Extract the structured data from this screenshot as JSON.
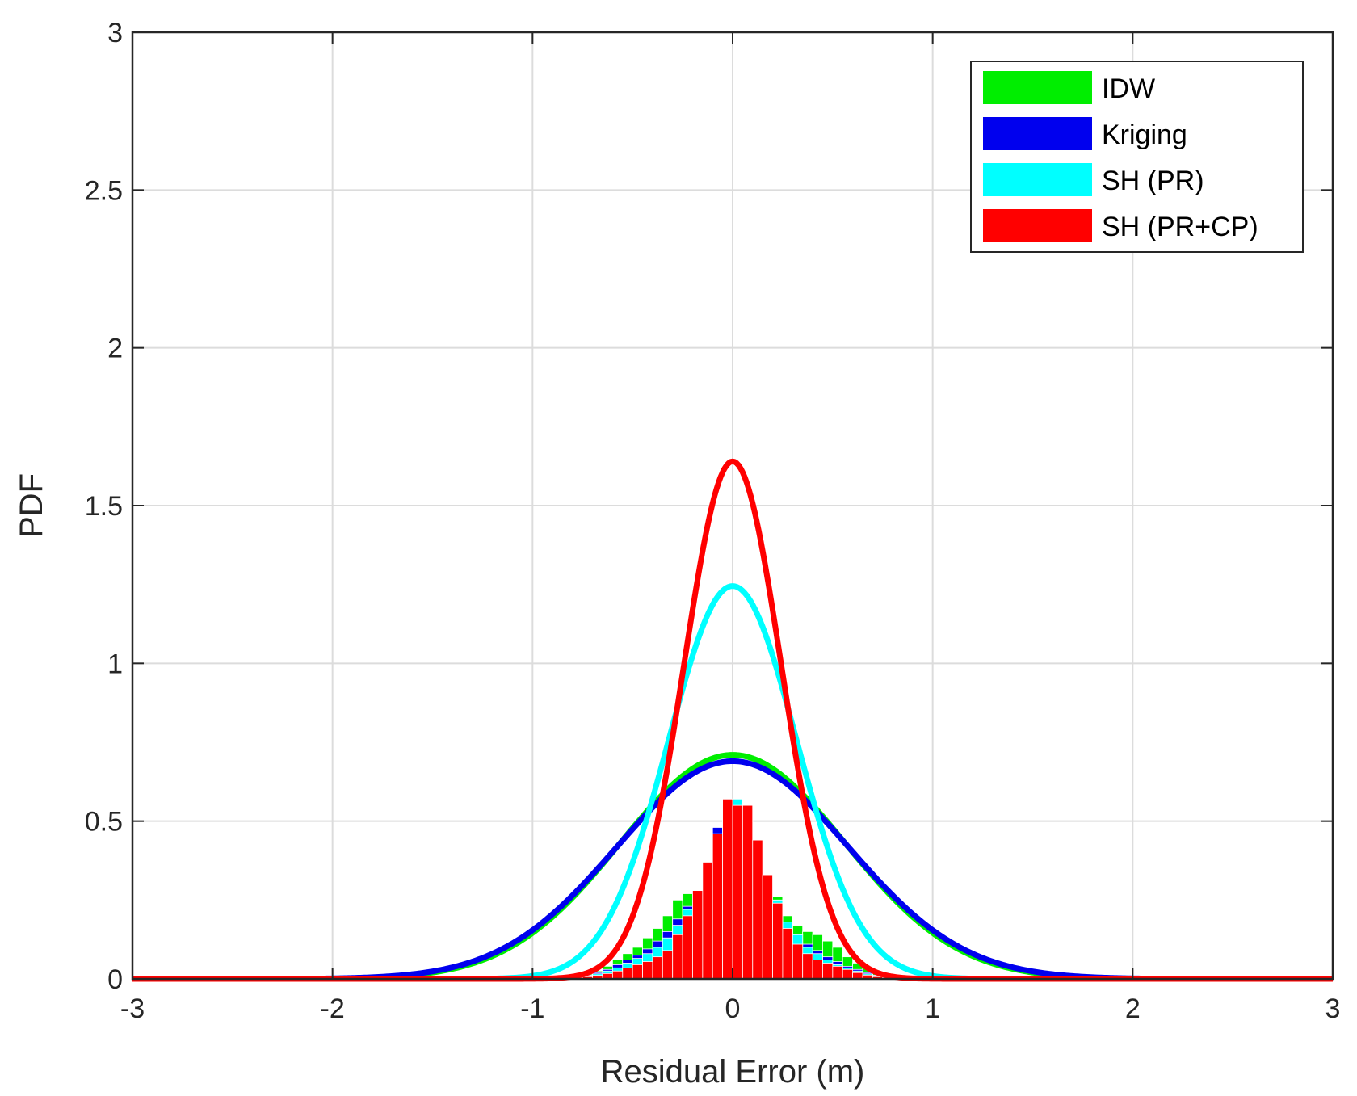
{
  "chart_data": {
    "type": "histogram_with_fitted_pdf",
    "title": "",
    "xlabel": "Residual Error (m)",
    "ylabel": "PDF",
    "xlim": [
      -3,
      3
    ],
    "ylim": [
      0,
      3
    ],
    "xticks": [
      -3,
      -2,
      -1,
      0,
      1,
      2,
      3
    ],
    "xtick_labels": [
      "-3",
      "-2",
      "-1",
      "0",
      "1",
      "2",
      "3"
    ],
    "yticks": [
      0,
      0.5,
      1,
      1.5,
      2,
      2.5,
      3
    ],
    "ytick_labels": [
      "0",
      "0.5",
      "1",
      "1.5",
      "2",
      "2.5",
      "3"
    ],
    "grid": true,
    "legend_position": "top-right",
    "histogram_bin_width": 0.05,
    "series": [
      {
        "name": "IDW",
        "color": "#00ee00",
        "fit": {
          "distribution": "normal",
          "mean": 0.0,
          "peak": 0.71
        },
        "histogram": {
          "centers": [
            -0.825,
            -0.775,
            -0.725,
            -0.675,
            -0.625,
            -0.575,
            -0.525,
            -0.475,
            -0.425,
            -0.375,
            -0.325,
            -0.275,
            -0.225,
            -0.175,
            -0.125,
            -0.075,
            -0.025,
            0.025,
            0.075,
            0.125,
            0.175,
            0.225,
            0.275,
            0.325,
            0.375,
            0.425,
            0.475,
            0.525,
            0.575,
            0.625,
            0.675,
            0.725,
            0.775,
            0.825
          ],
          "values": [
            0.005,
            0.01,
            0.015,
            0.025,
            0.04,
            0.06,
            0.08,
            0.1,
            0.13,
            0.16,
            0.2,
            0.25,
            0.27,
            0.28,
            0.37,
            0.43,
            0.55,
            0.56,
            0.55,
            0.44,
            0.33,
            0.26,
            0.2,
            0.17,
            0.15,
            0.14,
            0.12,
            0.1,
            0.07,
            0.05,
            0.035,
            0.02,
            0.01,
            0.005
          ]
        }
      },
      {
        "name": "Kriging",
        "color": "#0000ee",
        "fit": {
          "distribution": "normal",
          "mean": 0.0,
          "peak": 0.69
        },
        "histogram": {
          "centers": [
            -0.825,
            -0.775,
            -0.725,
            -0.675,
            -0.625,
            -0.575,
            -0.525,
            -0.475,
            -0.425,
            -0.375,
            -0.325,
            -0.275,
            -0.225,
            -0.175,
            -0.125,
            -0.075,
            -0.025,
            0.025,
            0.075,
            0.125,
            0.175,
            0.225,
            0.275,
            0.325,
            0.375,
            0.425,
            0.475,
            0.525,
            0.575,
            0.625,
            0.675,
            0.725,
            0.775,
            0.825
          ],
          "values": [
            0.004,
            0.008,
            0.012,
            0.02,
            0.03,
            0.045,
            0.06,
            0.075,
            0.095,
            0.12,
            0.15,
            0.19,
            0.23,
            0.28,
            0.36,
            0.48,
            0.57,
            0.56,
            0.55,
            0.44,
            0.33,
            0.25,
            0.18,
            0.14,
            0.11,
            0.09,
            0.07,
            0.055,
            0.04,
            0.03,
            0.02,
            0.012,
            0.008,
            0.004
          ]
        }
      },
      {
        "name": "SH (PR)",
        "color": "#00ffff",
        "fit": {
          "distribution": "normal",
          "mean": 0.0,
          "peak": 1.245
        },
        "histogram": {
          "centers": [
            -0.825,
            -0.775,
            -0.725,
            -0.675,
            -0.625,
            -0.575,
            -0.525,
            -0.475,
            -0.425,
            -0.375,
            -0.325,
            -0.275,
            -0.225,
            -0.175,
            -0.125,
            -0.075,
            -0.025,
            0.025,
            0.075,
            0.125,
            0.175,
            0.225,
            0.275,
            0.325,
            0.375,
            0.425,
            0.475,
            0.525,
            0.575,
            0.625,
            0.675,
            0.725,
            0.775,
            0.825
          ],
          "values": [
            0.003,
            0.006,
            0.01,
            0.016,
            0.025,
            0.035,
            0.05,
            0.065,
            0.08,
            0.1,
            0.13,
            0.17,
            0.22,
            0.28,
            0.36,
            0.46,
            0.57,
            0.57,
            0.55,
            0.44,
            0.33,
            0.25,
            0.18,
            0.14,
            0.1,
            0.08,
            0.06,
            0.045,
            0.035,
            0.025,
            0.016,
            0.01,
            0.006,
            0.003
          ]
        }
      },
      {
        "name": "SH (PR+CP)",
        "color": "#ff0000",
        "fit": {
          "distribution": "normal",
          "mean": 0.0,
          "peak": 1.64
        },
        "histogram": {
          "centers": [
            -0.825,
            -0.775,
            -0.725,
            -0.675,
            -0.625,
            -0.575,
            -0.525,
            -0.475,
            -0.425,
            -0.375,
            -0.325,
            -0.275,
            -0.225,
            -0.175,
            -0.125,
            -0.075,
            -0.025,
            0.025,
            0.075,
            0.125,
            0.175,
            0.225,
            0.275,
            0.325,
            0.375,
            0.425,
            0.475,
            0.525,
            0.575,
            0.625,
            0.675,
            0.725,
            0.775,
            0.825
          ],
          "values": [
            0.002,
            0.004,
            0.007,
            0.011,
            0.017,
            0.025,
            0.035,
            0.045,
            0.055,
            0.07,
            0.09,
            0.14,
            0.2,
            0.28,
            0.37,
            0.46,
            0.57,
            0.55,
            0.55,
            0.44,
            0.33,
            0.24,
            0.16,
            0.11,
            0.08,
            0.06,
            0.05,
            0.04,
            0.03,
            0.02,
            0.012,
            0.007,
            0.004,
            0.002
          ]
        }
      }
    ]
  }
}
